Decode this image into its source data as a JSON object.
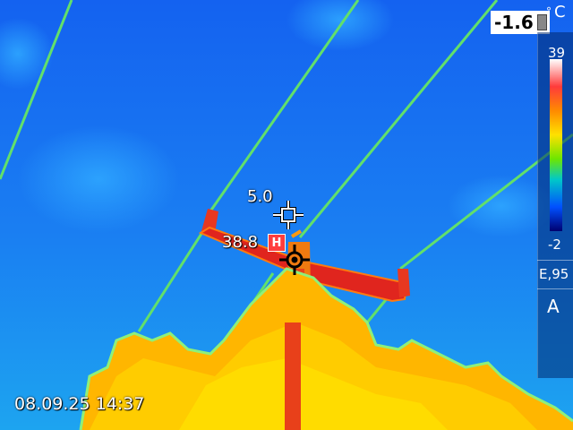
{
  "camera": {
    "spot_temperature": "5.0",
    "hot_spot_temperature": "38.8",
    "hot_spot_marker": "H",
    "top_readout": "-1.6",
    "timestamp": "08.09.25 14:37",
    "unit_symbol": "°",
    "unit_letter": "C",
    "scale_max": "39",
    "scale_min": "-2",
    "emissivity": "E,95",
    "mode": "A",
    "icons": [
      "spot-crosshair-icon",
      "hot-spot-crosshair-icon",
      "battery-icon"
    ]
  },
  "colors": {
    "sky": "#1a7df0",
    "power_line": "#6ee66a",
    "hot_structure": "#e8291f",
    "foliage": "#ffb400",
    "hot_badge": "#ff3d3d"
  }
}
